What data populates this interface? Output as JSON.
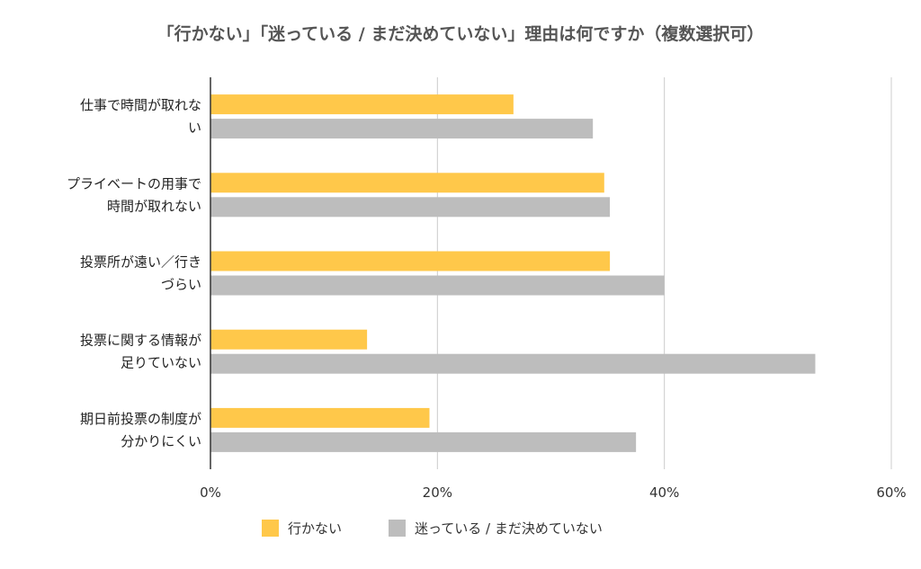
{
  "chart_data": {
    "type": "bar",
    "orientation": "horizontal",
    "title": "「行かない」「迷っている / まだ決めていない」理由は何ですか（複数選択可）",
    "xlabel": "",
    "ylabel": "",
    "categories": [
      [
        "仕事で時間が取れな",
        "い"
      ],
      [
        "プライベートの用事で",
        "時間が取れない"
      ],
      [
        "投票所が遠い／行き",
        "づらい"
      ],
      [
        "投票に関する情報が",
        "足りていない"
      ],
      [
        "期日前投票の制度が",
        "分かりにくい"
      ]
    ],
    "series": [
      {
        "name": "行かない",
        "color": "#FFC84A",
        "values": [
          26.7,
          34.7,
          35.2,
          13.8,
          19.3
        ]
      },
      {
        "name": "迷っている / まだ決めていない",
        "color": "#BDBDBD",
        "values": [
          33.7,
          35.2,
          40.0,
          53.3,
          37.5
        ]
      }
    ],
    "xlim": [
      0,
      60
    ],
    "xticks": [
      0,
      20,
      40,
      60
    ],
    "xtick_labels": [
      "0%",
      "20%",
      "40%",
      "60%"
    ],
    "grid": true,
    "legend_position": "bottom"
  }
}
